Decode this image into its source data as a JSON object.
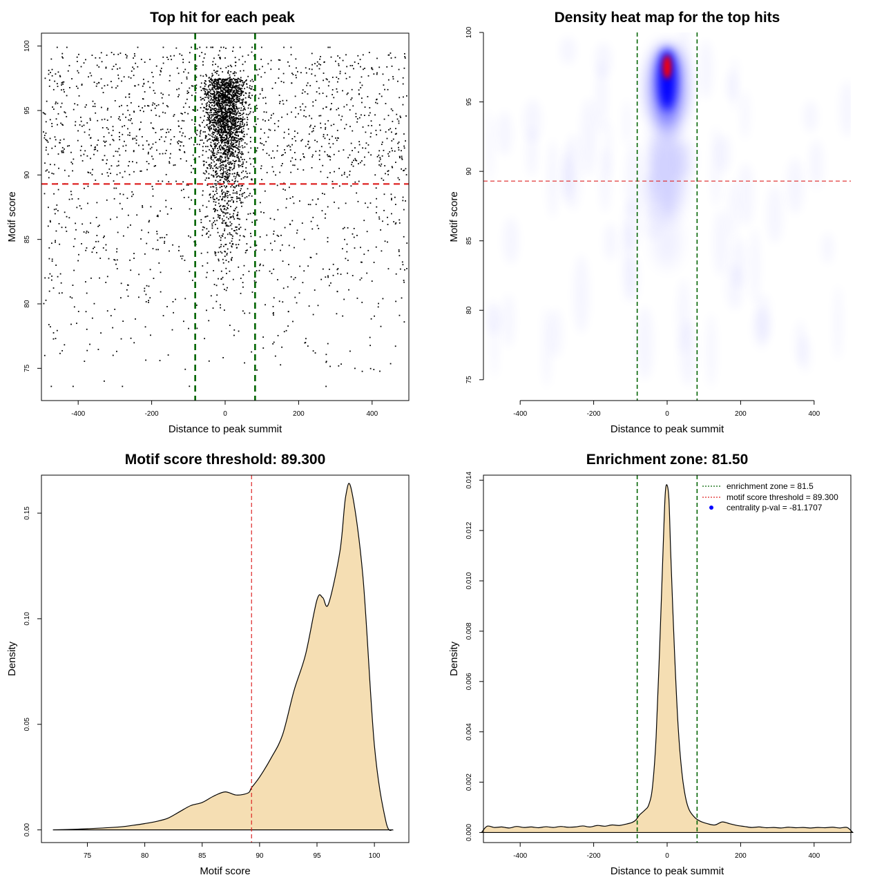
{
  "figure": {
    "colors": {
      "threshold": "#dd2222",
      "zone": "#006400",
      "fill": "#f5deb3",
      "points": "#000000",
      "heat_low": "#ffffff",
      "heat_mid": "#0000ff",
      "heat_high": "#ff0000",
      "legend_dot": "#0000ff"
    }
  },
  "chart_data": [
    {
      "id": "scatter",
      "type": "scatter",
      "title": "Top hit for each peak",
      "xlabel": "Distance to peak summit",
      "ylabel": "Motif score",
      "xlim": [
        -500,
        500
      ],
      "ylim": [
        72.5,
        101
      ],
      "xticks": [
        -400,
        -200,
        0,
        200,
        400
      ],
      "yticks": [
        75,
        80,
        85,
        90,
        95,
        100
      ],
      "grid": false,
      "hline": 89.3,
      "vlines": [
        -81.5,
        81.5
      ],
      "n_points": 4000,
      "points_note": "central cluster near x = 0 with scores 85-100; sparse background spread across -500..500"
    },
    {
      "id": "heatmap",
      "type": "heatmap",
      "title": "Density heat map for the top hits",
      "xlabel": "Distance to peak summit",
      "ylabel": "Motif score",
      "xlim": [
        -500,
        500
      ],
      "ylim": [
        73.5,
        100
      ],
      "xticks": [
        -400,
        -200,
        0,
        200,
        400
      ],
      "yticks": [
        75,
        80,
        85,
        90,
        95,
        100
      ],
      "grid": false,
      "hline": 89.3,
      "vlines": [
        -81.5,
        81.5
      ],
      "peak": {
        "x": 0,
        "y": 97.5
      }
    },
    {
      "id": "score_density",
      "type": "area",
      "title": "Motif score threshold: 89.300",
      "xlabel": "Motif score",
      "ylabel": "Density",
      "xlim": [
        71,
        103
      ],
      "ylim": [
        -0.006,
        0.168
      ],
      "xticks": [
        75,
        80,
        85,
        90,
        95,
        100
      ],
      "yticks": [
        0.0,
        0.05,
        0.1,
        0.15
      ],
      "ytick_labels": [
        "0.00",
        "0.05",
        "0.10",
        "0.15"
      ],
      "grid": false,
      "vline": 89.3,
      "x": [
        72,
        74,
        76,
        78,
        79,
        80,
        81,
        82,
        83,
        84,
        85,
        86,
        87,
        88,
        89,
        89.3,
        90,
        91,
        92,
        93,
        94,
        95,
        95.5,
        96,
        97,
        97.5,
        98,
        99,
        100,
        101,
        101.6
      ],
      "y": [
        0.0,
        0.0003,
        0.0008,
        0.0015,
        0.0022,
        0.003,
        0.004,
        0.0055,
        0.0085,
        0.0115,
        0.013,
        0.016,
        0.018,
        0.0165,
        0.0175,
        0.02,
        0.025,
        0.034,
        0.045,
        0.066,
        0.083,
        0.109,
        0.11,
        0.107,
        0.132,
        0.158,
        0.161,
        0.12,
        0.04,
        0.004,
        0.0
      ]
    },
    {
      "id": "distance_density",
      "type": "area",
      "title": "Enrichment zone: 81.50",
      "xlabel": "Distance to peak summit",
      "ylabel": "Density",
      "xlim": [
        -500,
        500
      ],
      "ylim": [
        -0.0004,
        0.0142
      ],
      "xticks": [
        -400,
        -200,
        0,
        200,
        400
      ],
      "yticks": [
        0.0,
        0.002,
        0.004,
        0.006,
        0.008,
        0.01,
        0.012,
        0.014
      ],
      "ytick_labels": [
        "0.000",
        "0.002",
        "0.004",
        "0.006",
        "0.008",
        "0.010",
        "0.012",
        "0.014"
      ],
      "grid": false,
      "vlines": [
        -81.5,
        81.5
      ],
      "x": [
        -505,
        -490,
        -470,
        -450,
        -430,
        -410,
        -390,
        -370,
        -350,
        -330,
        -310,
        -290,
        -270,
        -250,
        -230,
        -210,
        -190,
        -170,
        -150,
        -130,
        -110,
        -95,
        -85,
        -75,
        -60,
        -50,
        -40,
        -30,
        -20,
        -10,
        -5,
        0,
        5,
        10,
        20,
        30,
        40,
        50,
        60,
        75,
        90,
        110,
        130,
        150,
        170,
        190,
        210,
        230,
        250,
        270,
        290,
        310,
        330,
        350,
        370,
        390,
        410,
        430,
        450,
        470,
        490,
        505
      ],
      "y": [
        0.0,
        0.00025,
        0.0002,
        0.00022,
        0.00018,
        0.00024,
        0.0002,
        0.00022,
        0.00019,
        0.00023,
        0.0002,
        0.00024,
        0.00021,
        0.00022,
        0.00026,
        0.00022,
        0.00028,
        0.00025,
        0.0003,
        0.00028,
        0.00034,
        0.0004,
        0.0005,
        0.0007,
        0.0009,
        0.0011,
        0.0018,
        0.0038,
        0.0075,
        0.0117,
        0.0135,
        0.0138,
        0.0132,
        0.011,
        0.0072,
        0.0042,
        0.0024,
        0.0014,
        0.0009,
        0.0006,
        0.00045,
        0.00035,
        0.0003,
        0.00042,
        0.00035,
        0.00028,
        0.00024,
        0.0002,
        0.00022,
        0.00019,
        0.0002,
        0.00018,
        0.00021,
        0.00019,
        0.0002,
        0.00018,
        0.0002,
        0.00019,
        0.00021,
        0.00018,
        0.0002,
        0.0
      ],
      "legend": {
        "placement": "top-right",
        "items": [
          {
            "label": "enrichment zone = 81.5",
            "style": "dotted",
            "color": "#006400"
          },
          {
            "label": "motif score threshold = 89.300",
            "style": "dotted",
            "color": "#dd2222"
          },
          {
            "label": "centrality p-val = -81.1707",
            "style": "dot",
            "color": "#0000ff"
          }
        ]
      }
    }
  ]
}
